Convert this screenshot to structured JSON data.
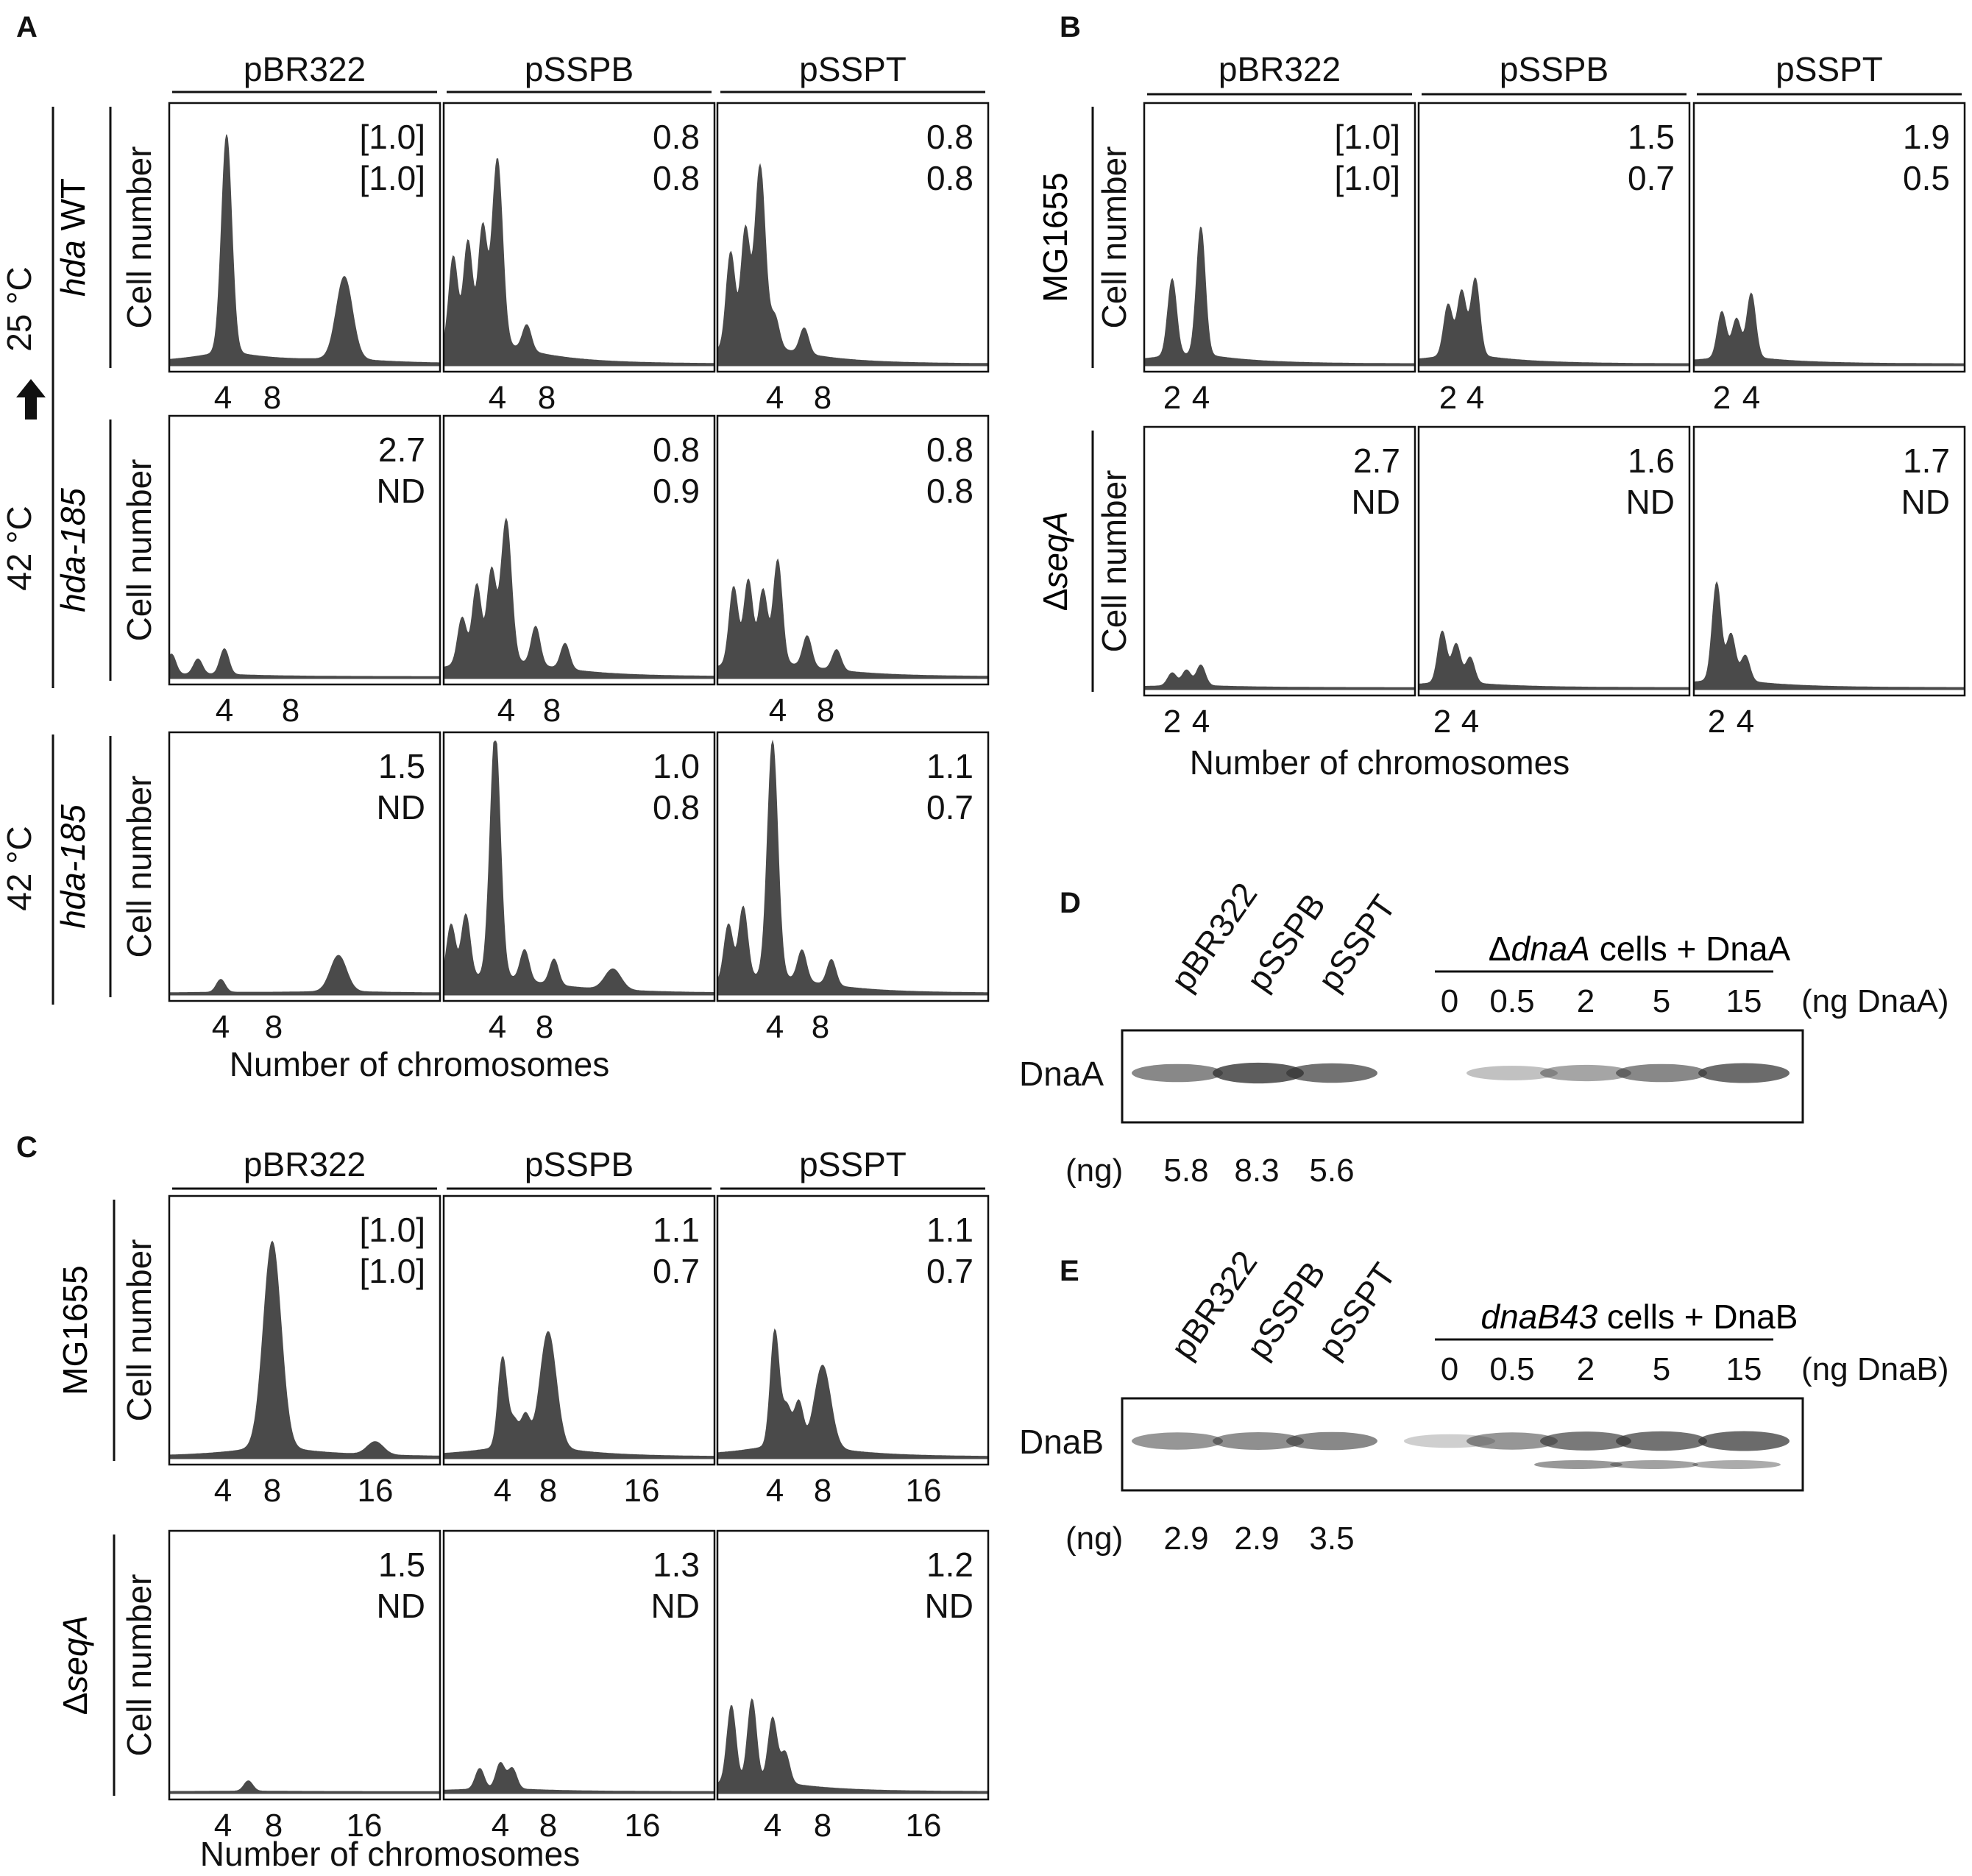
{
  "panels": {
    "A": {
      "letter": "A",
      "columns": [
        "pBR322",
        "pSSPB",
        "pSSPT"
      ],
      "outer_label": "42 °C",
      "outer_arrow_to": "25 °C",
      "outer_label_2": "42 °C",
      "row_labels": [
        "hda WT",
        "hda-185",
        "hda-185"
      ],
      "ylabel": "Cell number",
      "xlabel": "Number of chromosomes",
      "ratios": [
        [
          [
            "[1.0]",
            "[1.0]"
          ],
          [
            "0.8",
            "0.8"
          ],
          [
            "0.8",
            "0.8"
          ]
        ],
        [
          [
            "2.7",
            "ND"
          ],
          [
            "0.8",
            "0.9"
          ],
          [
            "0.8",
            "0.8"
          ]
        ],
        [
          [
            "1.5",
            "ND"
          ],
          [
            "1.0",
            "0.8"
          ],
          [
            "1.1",
            "0.7"
          ]
        ]
      ]
    },
    "B": {
      "letter": "B",
      "columns": [
        "pBR322",
        "pSSPB",
        "pSSPT"
      ],
      "row_labels": [
        "MG1655",
        "ΔseqA"
      ],
      "ylabel": "Cell number",
      "xlabel": "Number of chromosomes",
      "ratios": [
        [
          [
            "[1.0]",
            "[1.0]"
          ],
          [
            "1.5",
            "0.7"
          ],
          [
            "1.9",
            "0.5"
          ]
        ],
        [
          [
            "2.7",
            "ND"
          ],
          [
            "1.6",
            "ND"
          ],
          [
            "1.7",
            "ND"
          ]
        ]
      ]
    },
    "C": {
      "letter": "C",
      "columns": [
        "pBR322",
        "pSSPB",
        "pSSPT"
      ],
      "row_labels": [
        "MG1655",
        "ΔseqA"
      ],
      "ylabel": "Cell number",
      "xlabel": "Number of chromosomes",
      "ratios": [
        [
          [
            "[1.0]",
            "[1.0]"
          ],
          [
            "1.1",
            "0.7"
          ],
          [
            "1.1",
            "0.7"
          ]
        ],
        [
          [
            "1.5",
            "ND"
          ],
          [
            "1.3",
            "ND"
          ],
          [
            "1.2",
            "ND"
          ]
        ]
      ]
    },
    "D": {
      "letter": "D",
      "lanes": [
        "pBR322",
        "pSSPB",
        "pSSPT"
      ],
      "group_label": "ΔdnaA cells + DnaA",
      "standards": [
        "0",
        "0.5",
        "2",
        "5",
        "15"
      ],
      "unit": "(ng DnaA)",
      "band": "DnaA",
      "ng_label": "(ng)",
      "ng": [
        "5.8",
        "8.3",
        "5.6"
      ]
    },
    "E": {
      "letter": "E",
      "lanes": [
        "pBR322",
        "pSSPB",
        "pSSPT"
      ],
      "group_label": "dnaB43 cells + DnaB",
      "standards": [
        "0",
        "0.5",
        "2",
        "5",
        "15"
      ],
      "unit": "(ng DnaB)",
      "band": "DnaB",
      "ng_label": "(ng)",
      "ng": [
        "2.9",
        "2.9",
        "3.5"
      ]
    }
  },
  "chart_data": [
    {
      "type": "area",
      "panel": "A",
      "row": "hda WT",
      "column": "pBR322",
      "x_ticks": [
        4,
        8
      ],
      "peaks": [
        {
          "x": 4,
          "height": 0.85
        },
        {
          "x": 8,
          "height": 0.32
        }
      ]
    },
    {
      "type": "area",
      "panel": "A",
      "row": "hda WT",
      "column": "pSSPB",
      "x_ticks": [
        4,
        8
      ],
      "peaks": [
        {
          "x": 2.5,
          "height": 0.35
        },
        {
          "x": 3,
          "height": 0.4
        },
        {
          "x": 3.5,
          "height": 0.45
        },
        {
          "x": 4,
          "height": 0.72
        },
        {
          "x": 5,
          "height": 0.1
        }
      ]
    },
    {
      "type": "area",
      "panel": "A",
      "row": "hda WT",
      "column": "pSSPT",
      "x_ticks": [
        4,
        8
      ],
      "peaks": [
        {
          "x": 2.5,
          "height": 0.37
        },
        {
          "x": 3,
          "height": 0.45
        },
        {
          "x": 3.5,
          "height": 0.7
        },
        {
          "x": 4,
          "height": 0.12
        },
        {
          "x": 5,
          "height": 0.1
        }
      ]
    },
    {
      "type": "area",
      "panel": "A",
      "row": "hda-185 (42→25 °C)",
      "column": "pBR322",
      "x_ticks": [
        4,
        8
      ],
      "peaks": [
        {
          "x": 2,
          "height": 0.08
        },
        {
          "x": 3,
          "height": 0.06
        },
        {
          "x": 4,
          "height": 0.1
        }
      ]
    },
    {
      "type": "area",
      "panel": "A",
      "row": "hda-185 (42→25 °C)",
      "column": "pSSPB",
      "x_ticks": [
        4,
        8
      ],
      "peaks": [
        {
          "x": 2.5,
          "height": 0.18
        },
        {
          "x": 3,
          "height": 0.3
        },
        {
          "x": 3.5,
          "height": 0.35
        },
        {
          "x": 4,
          "height": 0.55
        },
        {
          "x": 5,
          "height": 0.15
        },
        {
          "x": 6,
          "height": 0.1
        }
      ]
    },
    {
      "type": "area",
      "panel": "A",
      "row": "hda-185 (42→25 °C)",
      "column": "pSSPT",
      "x_ticks": [
        4,
        8
      ],
      "peaks": [
        {
          "x": 2.5,
          "height": 0.3
        },
        {
          "x": 3,
          "height": 0.32
        },
        {
          "x": 3.5,
          "height": 0.28
        },
        {
          "x": 4,
          "height": 0.4
        },
        {
          "x": 5,
          "height": 0.12
        },
        {
          "x": 6,
          "height": 0.08
        }
      ]
    },
    {
      "type": "area",
      "panel": "A",
      "row": "hda-185 (42 °C)",
      "column": "pBR322",
      "x_ticks": [
        4,
        8
      ],
      "peaks": [
        {
          "x": 4,
          "height": 0.05
        },
        {
          "x": 8,
          "height": 0.14
        }
      ]
    },
    {
      "type": "area",
      "panel": "A",
      "row": "hda-185 (42 °C)",
      "column": "pSSPB",
      "x_ticks": [
        4,
        8
      ],
      "peaks": [
        {
          "x": 2.5,
          "height": 0.22
        },
        {
          "x": 3,
          "height": 0.25
        },
        {
          "x": 4,
          "height": 0.95
        },
        {
          "x": 5,
          "height": 0.12
        },
        {
          "x": 6,
          "height": 0.1
        },
        {
          "x": 8,
          "height": 0.08
        }
      ]
    },
    {
      "type": "area",
      "panel": "A",
      "row": "hda-185 (42 °C)",
      "column": "pSSPT",
      "x_ticks": [
        4,
        8
      ],
      "peaks": [
        {
          "x": 2.5,
          "height": 0.22
        },
        {
          "x": 3,
          "height": 0.28
        },
        {
          "x": 4,
          "height": 0.92
        },
        {
          "x": 5,
          "height": 0.12
        },
        {
          "x": 6,
          "height": 0.1
        }
      ]
    },
    {
      "type": "area",
      "panel": "B",
      "row": "MG1655",
      "column": "pBR322",
      "x_ticks": [
        2,
        4
      ],
      "peaks": [
        {
          "x": 2,
          "height": 0.3
        },
        {
          "x": 4,
          "height": 0.5
        }
      ]
    },
    {
      "type": "area",
      "panel": "B",
      "row": "MG1655",
      "column": "pSSPB",
      "x_ticks": [
        2,
        4
      ],
      "peaks": [
        {
          "x": 2,
          "height": 0.2
        },
        {
          "x": 3,
          "height": 0.25
        },
        {
          "x": 4,
          "height": 0.3
        }
      ]
    },
    {
      "type": "area",
      "panel": "B",
      "row": "MG1655",
      "column": "pSSPT",
      "x_ticks": [
        2,
        4
      ],
      "peaks": [
        {
          "x": 2,
          "height": 0.18
        },
        {
          "x": 3,
          "height": 0.15
        },
        {
          "x": 4,
          "height": 0.25
        }
      ]
    },
    {
      "type": "area",
      "panel": "B",
      "row": "ΔseqA",
      "column": "pBR322",
      "x_ticks": [
        2,
        4
      ],
      "peaks": [
        {
          "x": 2,
          "height": 0.05
        },
        {
          "x": 3,
          "height": 0.06
        },
        {
          "x": 4,
          "height": 0.08
        }
      ]
    },
    {
      "type": "area",
      "panel": "B",
      "row": "ΔseqA",
      "column": "pSSPB",
      "x_ticks": [
        2,
        4
      ],
      "peaks": [
        {
          "x": 2,
          "height": 0.2
        },
        {
          "x": 3,
          "height": 0.15
        },
        {
          "x": 4,
          "height": 0.1
        }
      ]
    },
    {
      "type": "area",
      "panel": "B",
      "row": "ΔseqA",
      "column": "pSSPT",
      "x_ticks": [
        2,
        4
      ],
      "peaks": [
        {
          "x": 2,
          "height": 0.38
        },
        {
          "x": 3,
          "height": 0.18
        },
        {
          "x": 4,
          "height": 0.1
        }
      ]
    },
    {
      "type": "area",
      "panel": "C",
      "row": "MG1655",
      "column": "pBR322",
      "x_ticks": [
        4,
        8,
        16
      ],
      "peaks": [
        {
          "x": 8,
          "height": 0.8
        },
        {
          "x": 16,
          "height": 0.05
        }
      ]
    },
    {
      "type": "area",
      "panel": "C",
      "row": "MG1655",
      "column": "pSSPB",
      "x_ticks": [
        4,
        8,
        16
      ],
      "peaks": [
        {
          "x": 4,
          "height": 0.35
        },
        {
          "x": 5,
          "height": 0.1
        },
        {
          "x": 6,
          "height": 0.12
        },
        {
          "x": 8,
          "height": 0.45
        }
      ]
    },
    {
      "type": "area",
      "panel": "C",
      "row": "MG1655",
      "column": "pSSPT",
      "x_ticks": [
        4,
        8,
        16
      ],
      "peaks": [
        {
          "x": 4,
          "height": 0.45
        },
        {
          "x": 5,
          "height": 0.15
        },
        {
          "x": 6,
          "height": 0.17
        },
        {
          "x": 8,
          "height": 0.32
        }
      ]
    },
    {
      "type": "area",
      "panel": "C",
      "row": "ΔseqA",
      "column": "pBR322",
      "x_ticks": [
        4,
        8,
        16
      ],
      "peaks": [
        {
          "x": 6,
          "height": 0.04
        }
      ]
    },
    {
      "type": "area",
      "panel": "C",
      "row": "ΔseqA",
      "column": "pSSPB",
      "x_ticks": [
        4,
        8,
        16
      ],
      "peaks": [
        {
          "x": 3,
          "height": 0.08
        },
        {
          "x": 4,
          "height": 0.1
        },
        {
          "x": 5,
          "height": 0.08
        }
      ]
    },
    {
      "type": "area",
      "panel": "C",
      "row": "ΔseqA",
      "column": "pSSPT",
      "x_ticks": [
        4,
        8,
        16
      ],
      "peaks": [
        {
          "x": 2,
          "height": 0.3
        },
        {
          "x": 3,
          "height": 0.32
        },
        {
          "x": 4,
          "height": 0.25
        },
        {
          "x": 5,
          "height": 0.12
        }
      ]
    }
  ]
}
